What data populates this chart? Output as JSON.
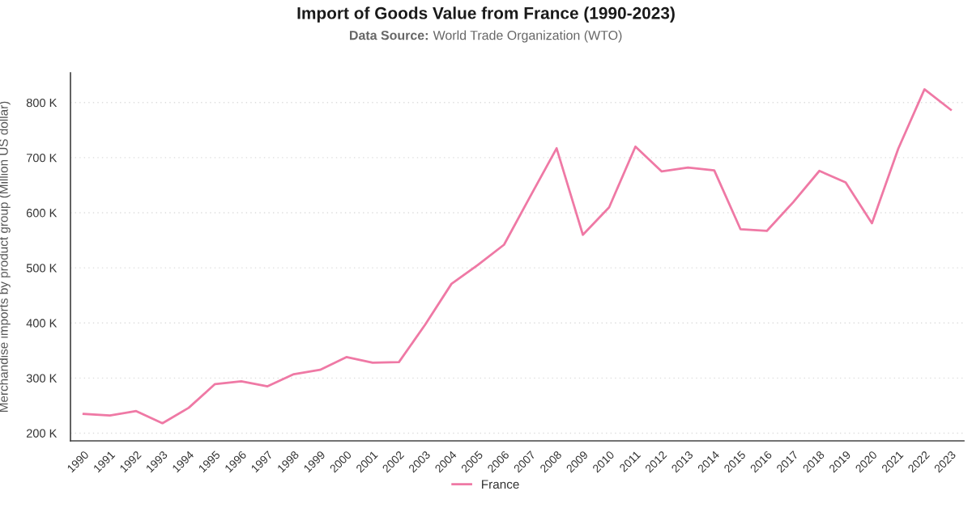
{
  "chart_data": {
    "type": "line",
    "title": "Import of Goods Value from France (1990-2023)",
    "subtitle": "Data Source: World Trade Organization (WTO)",
    "ylabel": "Merchandise imports by product group (Million US dollar)",
    "categories": [
      "1990",
      "1991",
      "1992",
      "1993",
      "1994",
      "1995",
      "1996",
      "1997",
      "1998",
      "1999",
      "2000",
      "2001",
      "2002",
      "2003",
      "2004",
      "2005",
      "2006",
      "2007",
      "2008",
      "2009",
      "2010",
      "2011",
      "2012",
      "2013",
      "2014",
      "2015",
      "2016",
      "2017",
      "2018",
      "2019",
      "2020",
      "2021",
      "2022",
      "2023"
    ],
    "series": [
      {
        "name": "France",
        "color": "#ef79a5",
        "values": [
          235000,
          232000,
          240000,
          218000,
          246000,
          289000,
          294000,
          285000,
          307000,
          315000,
          338000,
          328000,
          329000,
          397000,
          471000,
          505000,
          542000,
          630000,
          717000,
          560000,
          610000,
          720000,
          675000,
          682000,
          677000,
          570000,
          567000,
          619000,
          676000,
          655000,
          581000,
          716000,
          824000,
          787000
        ]
      }
    ],
    "ylim": [
      186000,
      854000
    ],
    "yticks": [
      {
        "value": 200000,
        "label": "200 K"
      },
      {
        "value": 300000,
        "label": "300 K"
      },
      {
        "value": 400000,
        "label": "400 K"
      },
      {
        "value": 500000,
        "label": "500 K"
      },
      {
        "value": 600000,
        "label": "600 K"
      },
      {
        "value": 700000,
        "label": "700 K"
      },
      {
        "value": 800000,
        "label": "800 K"
      }
    ],
    "grid": "y",
    "legend": "bottom"
  }
}
